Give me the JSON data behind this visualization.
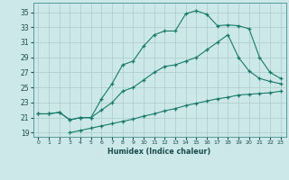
{
  "xlabel": "Humidex (Indice chaleur)",
  "bg_color": "#cce8e8",
  "grid_color": "#aacccc",
  "line_color": "#1a7a6a",
  "xlim": [
    -0.5,
    23.5
  ],
  "ylim": [
    18.5,
    36.2
  ],
  "xticks": [
    0,
    1,
    2,
    3,
    4,
    5,
    6,
    7,
    8,
    9,
    10,
    11,
    12,
    13,
    14,
    15,
    16,
    17,
    18,
    19,
    20,
    21,
    22,
    23
  ],
  "yticks": [
    19,
    21,
    23,
    25,
    27,
    29,
    31,
    33,
    35
  ],
  "curve1_x": [
    0,
    1,
    2,
    3,
    4,
    5,
    6,
    7,
    8,
    9,
    10,
    11,
    12,
    13,
    14,
    15,
    16,
    17,
    18,
    19,
    20,
    21,
    22,
    23
  ],
  "curve1_y": [
    21.5,
    21.5,
    21.7,
    20.7,
    21.0,
    21.0,
    23.5,
    25.5,
    28.0,
    28.5,
    30.5,
    32.0,
    32.5,
    32.5,
    34.8,
    35.2,
    34.7,
    33.2,
    33.3,
    33.2,
    32.8,
    29.0,
    27.0,
    26.2
  ],
  "curve2_x": [
    3,
    4,
    5,
    6,
    7,
    8,
    9,
    10,
    11,
    12,
    13,
    14,
    15,
    16,
    17,
    18,
    19,
    20,
    21,
    22,
    23
  ],
  "curve2_y": [
    19.0,
    19.3,
    19.6,
    19.9,
    20.2,
    20.5,
    20.8,
    21.2,
    21.5,
    21.9,
    22.2,
    22.6,
    22.9,
    23.2,
    23.5,
    23.7,
    24.0,
    24.1,
    24.2,
    24.3,
    24.5
  ],
  "curve3_x": [
    0,
    1,
    2,
    3,
    4,
    5,
    6,
    7,
    8,
    9,
    10,
    11,
    12,
    13,
    14,
    15,
    16,
    17,
    18,
    19,
    20,
    21,
    22,
    23
  ],
  "curve3_y": [
    21.5,
    21.5,
    21.7,
    20.7,
    21.0,
    21.0,
    22.0,
    23.0,
    24.5,
    25.0,
    26.0,
    27.0,
    27.8,
    28.0,
    28.5,
    29.0,
    30.0,
    31.0,
    32.0,
    29.0,
    27.2,
    26.2,
    25.8,
    25.5
  ]
}
